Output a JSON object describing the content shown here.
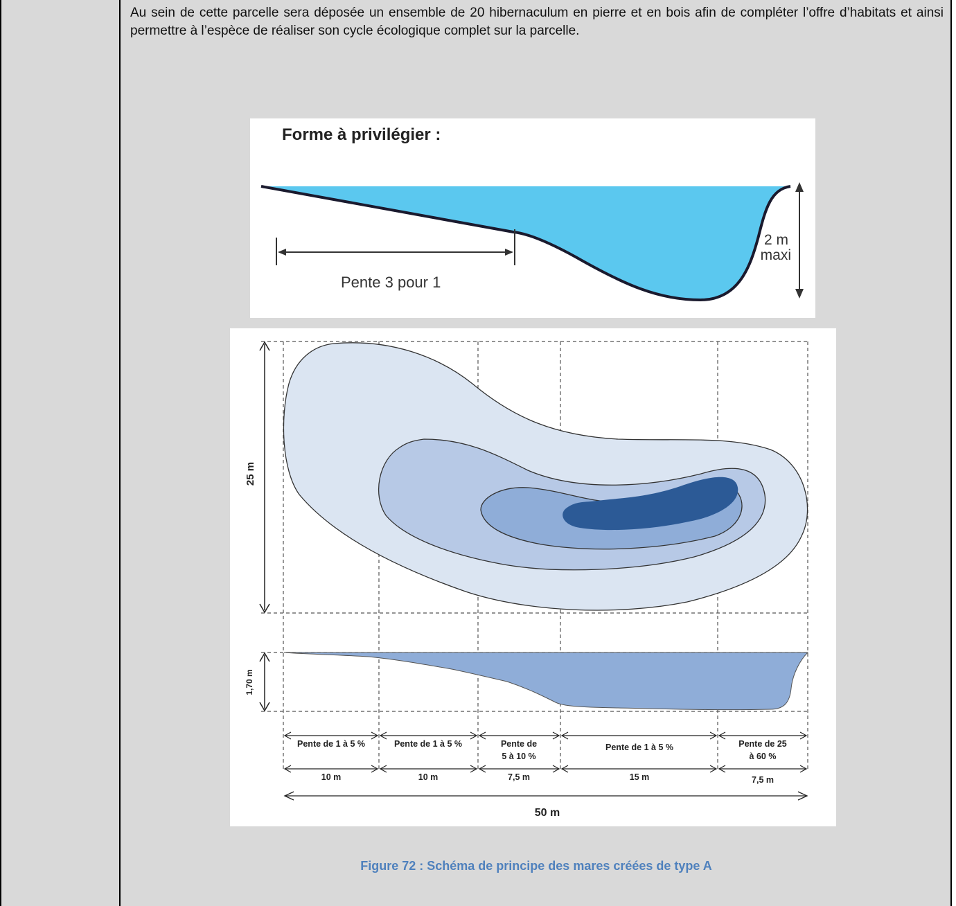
{
  "paragraph": "Au sein de cette parcelle sera déposée un ensemble de 20 hibernaculum en pierre et en bois afin de compléter l’offre d’habitats et ainsi permettre à l’espèce de réaliser son cycle écologique complet sur la parcelle.",
  "top_figure": {
    "title": "Forme à privilégier :",
    "slope_label": "Pente 3 pour 1",
    "depth_value": "2 m",
    "depth_note": "maxi",
    "water_color": "#5bc8ef"
  },
  "bottom_figure": {
    "width_label": "25 m",
    "depth_label": "1,70 m",
    "total_label": "50 m",
    "segments": [
      {
        "slope": "Pente de 1 à 5 %",
        "slope2": "",
        "length": "10 m"
      },
      {
        "slope": "Pente de 1 à 5 %",
        "slope2": "",
        "length": "10 m"
      },
      {
        "slope": "Pente de",
        "slope2": "5 à 10 %",
        "length": "7,5 m"
      },
      {
        "slope": "Pente de 1 à 5 %",
        "slope2": "",
        "length": "15 m"
      },
      {
        "slope": "Pente de 25",
        "slope2": "à 60 %",
        "length": "7,5 m"
      }
    ],
    "zone_colors": [
      "#dbe5f2",
      "#b7c9e6",
      "#8fadd8",
      "#2c5a96"
    ]
  },
  "caption": "Figure 72 : Schéma de principe des mares créées de type A"
}
